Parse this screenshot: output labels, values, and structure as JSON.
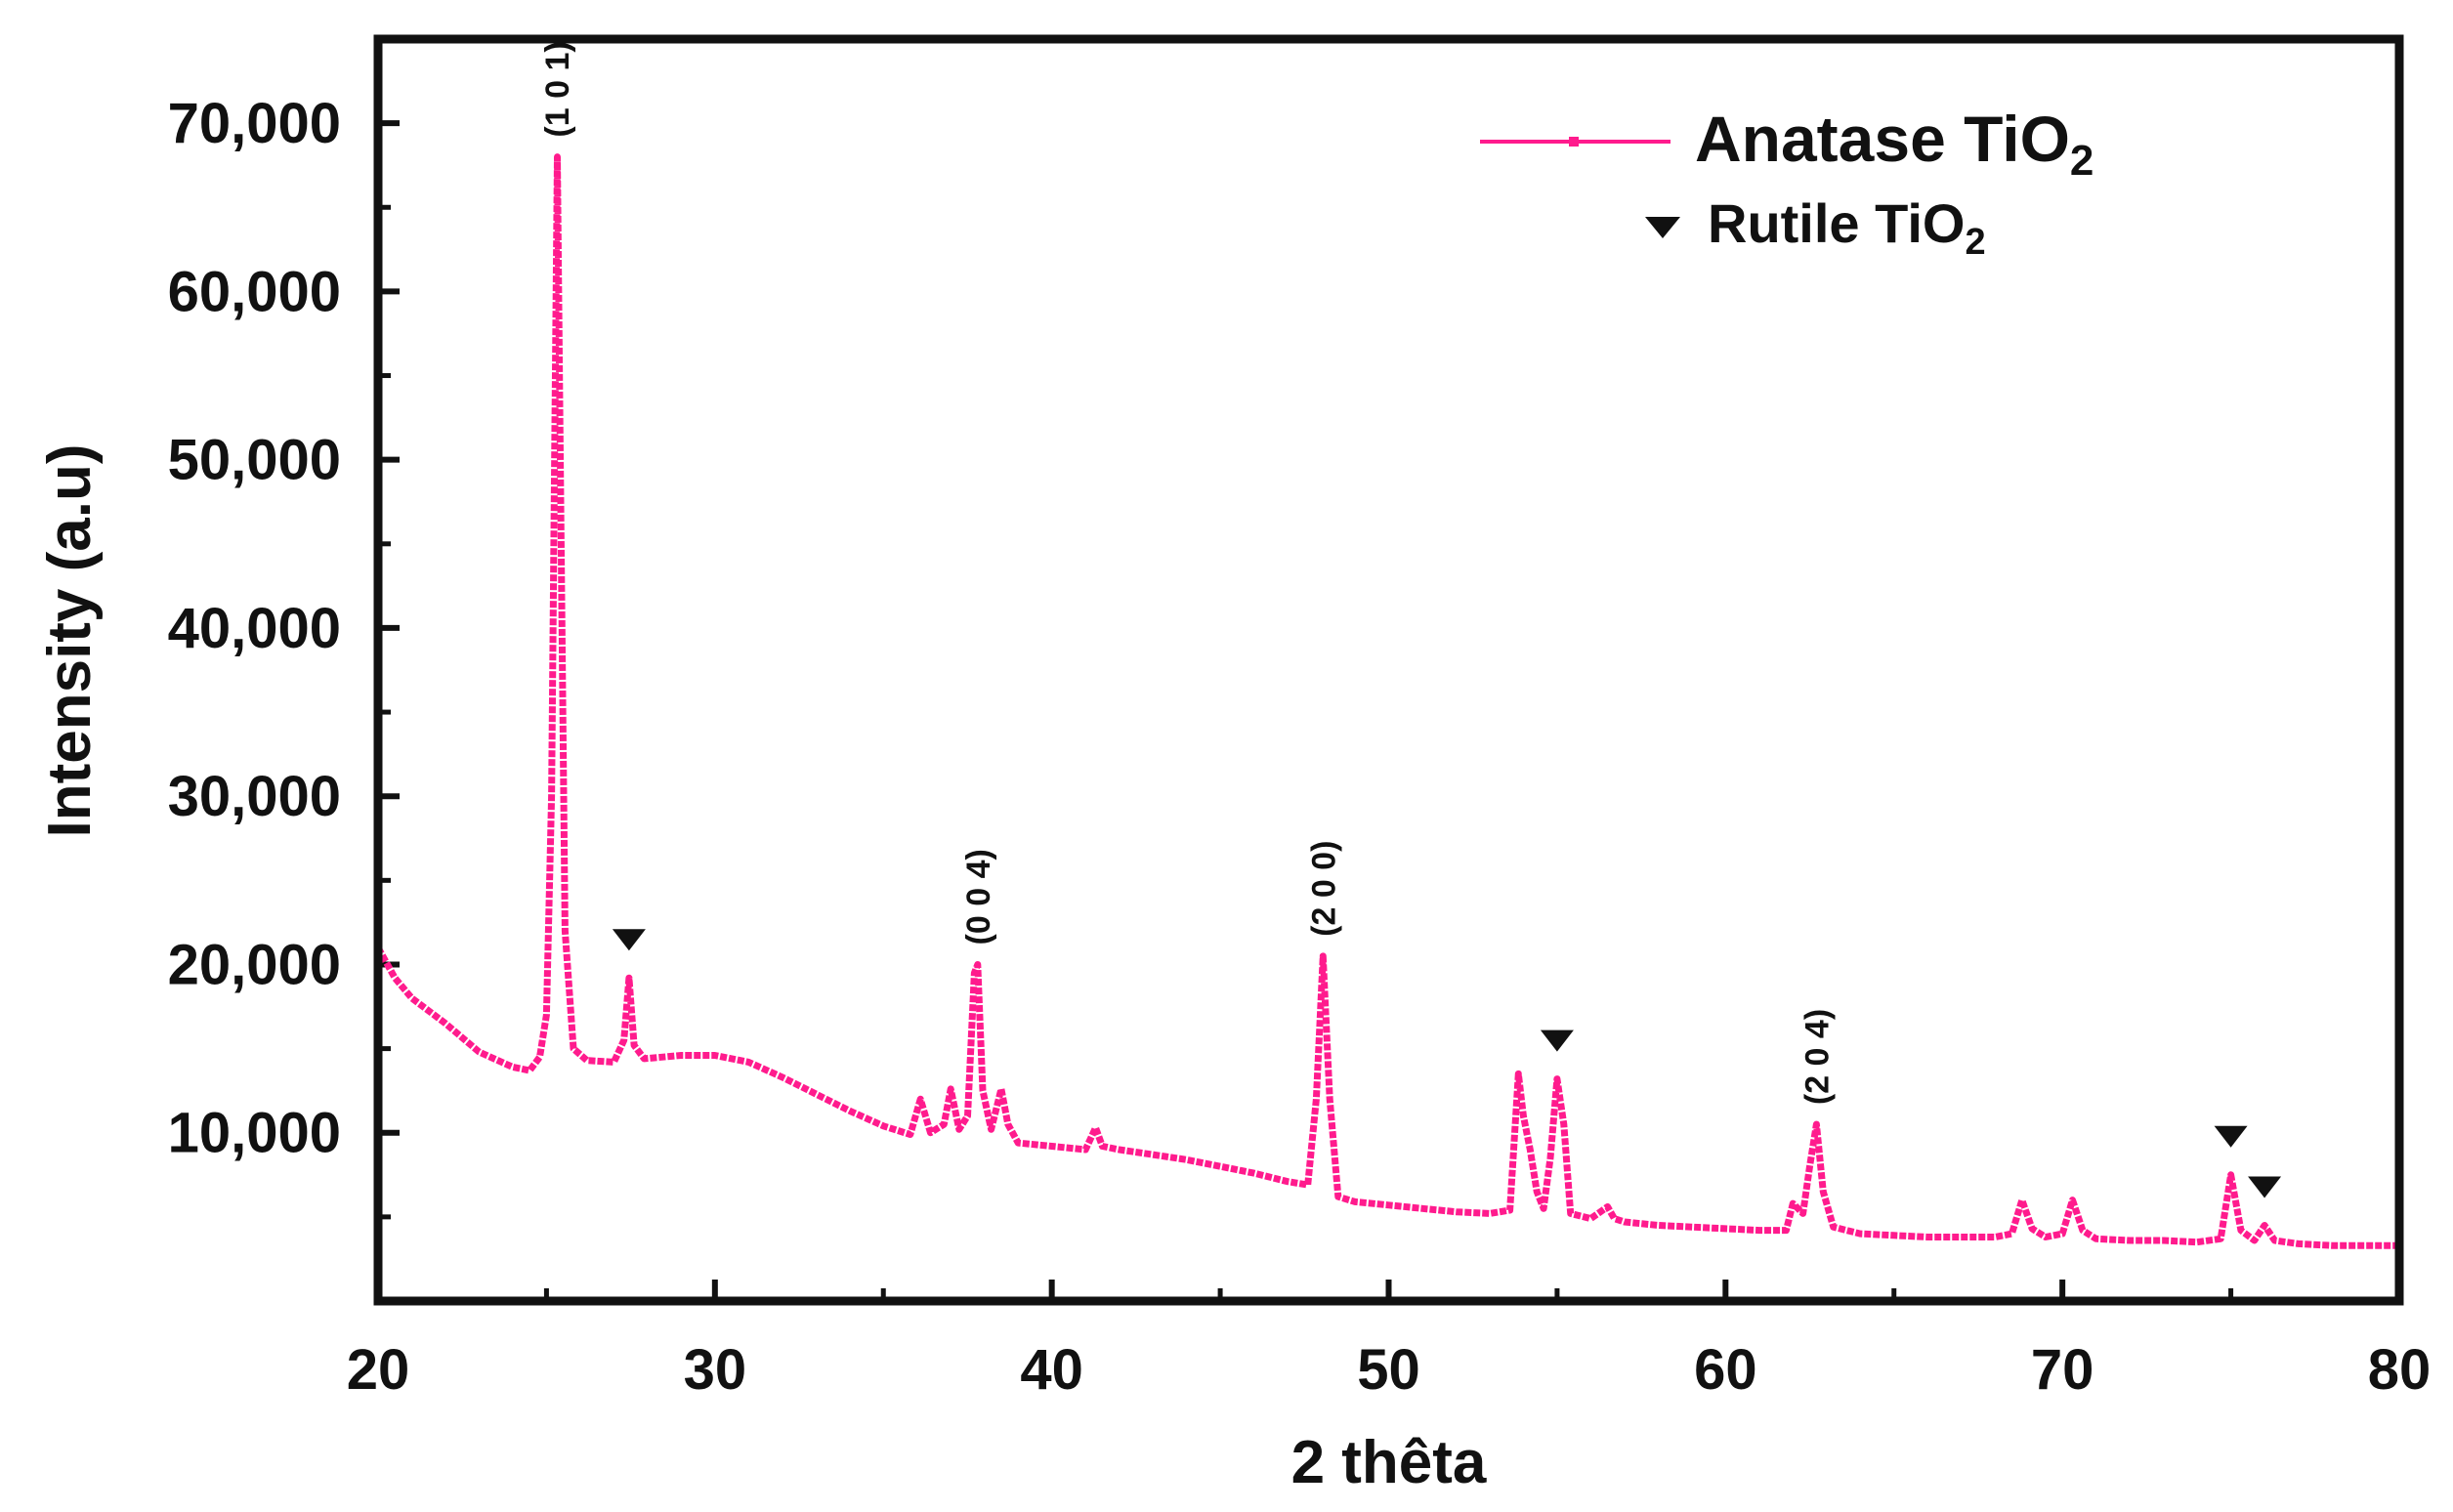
{
  "chart_data": {
    "type": "line",
    "title": "",
    "xlabel": "2 thêta",
    "ylabel": "Intensity (a.u)",
    "xlim": [
      20,
      80
    ],
    "ylim": [
      0,
      75000
    ],
    "xticks": [
      20,
      30,
      40,
      50,
      60,
      70,
      80
    ],
    "xtick_labels": [
      "20",
      "30",
      "40",
      "50",
      "60",
      "70",
      "80"
    ],
    "yticks": [
      10000,
      20000,
      30000,
      40000,
      50000,
      60000,
      70000
    ],
    "ytick_labels": [
      "10,000",
      "20,000",
      "30,000",
      "40,000",
      "50,000",
      "60,000",
      "70,000"
    ],
    "grid": false,
    "legend_position": "top-right",
    "legend": [
      {
        "text": "Anatase TiO",
        "sub": "2",
        "kind": "line"
      },
      {
        "text": "Rutile TiO",
        "sub": "2",
        "kind": "triangle"
      }
    ],
    "colors": {
      "series": "#ff1b8d",
      "axis": "#111111",
      "marker": "#111111"
    },
    "series": [
      {
        "values": [
          [
            20.0,
            21000
          ],
          [
            20.5,
            19200
          ],
          [
            21,
            18000
          ],
          [
            22,
            16500
          ],
          [
            23,
            14800
          ],
          [
            24,
            13900
          ],
          [
            24.5,
            13700
          ],
          [
            24.8,
            14500
          ],
          [
            25.0,
            17000
          ],
          [
            25.15,
            30000
          ],
          [
            25.25,
            52000
          ],
          [
            25.32,
            68000
          ],
          [
            25.4,
            52000
          ],
          [
            25.55,
            22000
          ],
          [
            25.8,
            15000
          ],
          [
            26.2,
            14300
          ],
          [
            27.0,
            14200
          ],
          [
            27.3,
            15500
          ],
          [
            27.45,
            19200
          ],
          [
            27.6,
            15200
          ],
          [
            27.9,
            14400
          ],
          [
            29,
            14600
          ],
          [
            30,
            14600
          ],
          [
            31,
            14200
          ],
          [
            32,
            13300
          ],
          [
            33,
            12300
          ],
          [
            34,
            11300
          ],
          [
            35,
            10400
          ],
          [
            35.8,
            9900
          ],
          [
            36.1,
            12000
          ],
          [
            36.4,
            10000
          ],
          [
            36.8,
            10500
          ],
          [
            37.0,
            12600
          ],
          [
            37.25,
            10200
          ],
          [
            37.5,
            11000
          ],
          [
            37.7,
            19500
          ],
          [
            37.8,
            20000
          ],
          [
            37.95,
            12500
          ],
          [
            38.2,
            10200
          ],
          [
            38.5,
            12600
          ],
          [
            38.7,
            10500
          ],
          [
            39,
            9400
          ],
          [
            40,
            9200
          ],
          [
            41,
            9000
          ],
          [
            41.3,
            10300
          ],
          [
            41.5,
            9200
          ],
          [
            42,
            9000
          ],
          [
            43,
            8700
          ],
          [
            44,
            8400
          ],
          [
            45,
            8000
          ],
          [
            46,
            7600
          ],
          [
            47,
            7100
          ],
          [
            47.6,
            6900
          ],
          [
            47.85,
            12000
          ],
          [
            48.05,
            20500
          ],
          [
            48.25,
            12000
          ],
          [
            48.5,
            6200
          ],
          [
            49,
            5900
          ],
          [
            50,
            5700
          ],
          [
            51,
            5500
          ],
          [
            52,
            5300
          ],
          [
            53,
            5200
          ],
          [
            53.6,
            5400
          ],
          [
            53.85,
            13500
          ],
          [
            54.0,
            11000
          ],
          [
            54.2,
            9000
          ],
          [
            54.4,
            6500
          ],
          [
            54.6,
            5500
          ],
          [
            54.8,
            8500
          ],
          [
            55.0,
            13200
          ],
          [
            55.2,
            10500
          ],
          [
            55.4,
            5200
          ],
          [
            56,
            4900
          ],
          [
            56.5,
            5600
          ],
          [
            56.7,
            4900
          ],
          [
            57,
            4700
          ],
          [
            58,
            4500
          ],
          [
            59,
            4400
          ],
          [
            60,
            4300
          ],
          [
            61,
            4200
          ],
          [
            61.8,
            4200
          ],
          [
            62.0,
            5800
          ],
          [
            62.3,
            5200
          ],
          [
            62.5,
            8000
          ],
          [
            62.7,
            10500
          ],
          [
            62.9,
            6500
          ],
          [
            63.2,
            4400
          ],
          [
            64,
            4000
          ],
          [
            65,
            3900
          ],
          [
            66,
            3800
          ],
          [
            67,
            3800
          ],
          [
            68,
            3800
          ],
          [
            68.5,
            4000
          ],
          [
            68.8,
            6000
          ],
          [
            69.1,
            4300
          ],
          [
            69.5,
            3800
          ],
          [
            70.0,
            4000
          ],
          [
            70.3,
            6000
          ],
          [
            70.6,
            4200
          ],
          [
            71,
            3700
          ],
          [
            72,
            3600
          ],
          [
            73,
            3600
          ],
          [
            74,
            3500
          ],
          [
            74.7,
            3700
          ],
          [
            75.0,
            7500
          ],
          [
            75.3,
            4200
          ],
          [
            75.7,
            3600
          ],
          [
            76.0,
            4500
          ],
          [
            76.3,
            3600
          ],
          [
            77,
            3400
          ],
          [
            78,
            3300
          ],
          [
            79,
            3300
          ],
          [
            80,
            3300
          ]
        ]
      }
    ],
    "annotations": [
      {
        "text": "(1 0 1)",
        "x": 25.3,
        "y": 68000
      },
      {
        "text": "(0 0 4)",
        "x": 37.8,
        "y": 20000
      },
      {
        "text": "(2 0 0)",
        "x": 48.05,
        "y": 20500
      },
      {
        "text": "(2 0 4)",
        "x": 62.7,
        "y": 10500
      }
    ],
    "rutile_markers": [
      {
        "x": 27.45,
        "y": 19200
      },
      {
        "x": 55.0,
        "y": 13200
      },
      {
        "x": 75.0,
        "y": 7500
      },
      {
        "x": 76.0,
        "y": 4500
      }
    ]
  }
}
